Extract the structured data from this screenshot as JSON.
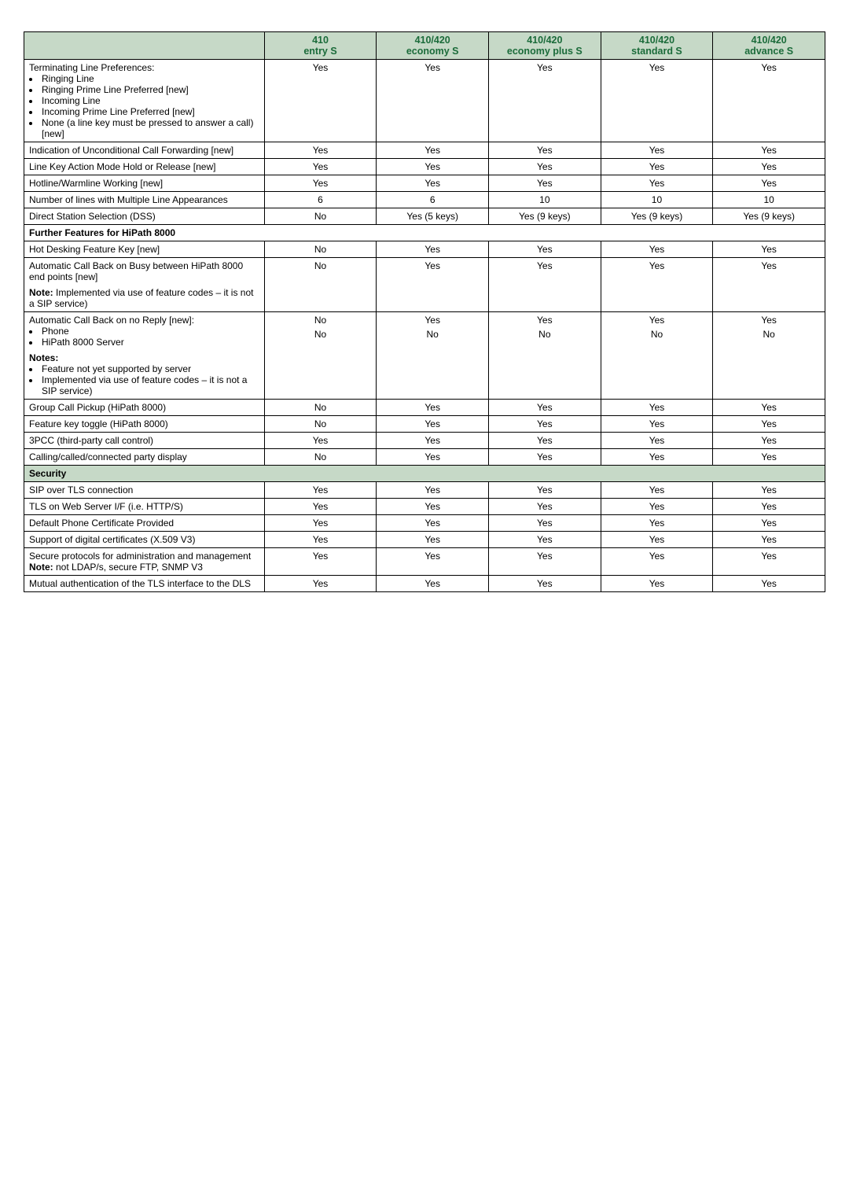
{
  "columns": [
    {
      "line1": "",
      "line2": ""
    },
    {
      "line1": "410",
      "line2": "entry S"
    },
    {
      "line1": "410/420",
      "line2": "economy S"
    },
    {
      "line1": "410/420",
      "line2": "economy plus S"
    },
    {
      "line1": "410/420",
      "line2": "standard S"
    },
    {
      "line1": "410/420",
      "line2": "advance S"
    }
  ],
  "rows": [
    {
      "feature": {
        "lead": "Terminating Line Preferences:",
        "bullets": [
          "Ringing Line",
          "Ringing Prime Line Preferred [new]",
          "Incoming Line",
          "Incoming Prime Line Preferred [new]",
          "None (a line key must be pressed to answer a call) [new]"
        ]
      },
      "values": [
        "Yes",
        "Yes",
        "Yes",
        "Yes",
        "Yes"
      ]
    },
    {
      "feature": {
        "lead": "Indication of Unconditional Call Forwarding [new]"
      },
      "values": [
        "Yes",
        "Yes",
        "Yes",
        "Yes",
        "Yes"
      ]
    },
    {
      "feature": {
        "lead": "Line Key Action Mode Hold or Release [new]"
      },
      "values": [
        "Yes",
        "Yes",
        "Yes",
        "Yes",
        "Yes"
      ]
    },
    {
      "feature": {
        "lead": "Hotline/Warmline Working [new]"
      },
      "values": [
        "Yes",
        "Yes",
        "Yes",
        "Yes",
        "Yes"
      ]
    },
    {
      "feature": {
        "lead": "Number of lines with Multiple Line Appearances"
      },
      "values": [
        "6",
        "6",
        "10",
        "10",
        "10"
      ]
    },
    {
      "feature": {
        "lead": "Direct Station Selection (DSS)"
      },
      "values": [
        "No",
        "Yes (5 keys)",
        "Yes (9 keys)",
        "Yes (9 keys)",
        "Yes (9 keys)"
      ]
    },
    {
      "subsection": "Further Features for HiPath 8000"
    },
    {
      "feature": {
        "lead": "Hot Desking Feature Key [new]"
      },
      "values": [
        "No",
        "Yes",
        "Yes",
        "Yes",
        "Yes"
      ]
    },
    {
      "feature": {
        "lead": "Automatic Call Back on Busy between HiPath 8000 end points [new]",
        "noteLabel": "Note:",
        "noteText": " Implemented via use of feature codes – it is not a SIP service)"
      },
      "values": [
        "No",
        "Yes",
        "Yes",
        "Yes",
        "Yes"
      ]
    },
    {
      "feature": {
        "lead": "Automatic Call Back on no Reply [new]:",
        "bullets": [
          "Phone",
          "HiPath 8000 Server"
        ],
        "notesLabel": "Notes:",
        "notesBullets": [
          "Feature not yet supported by server",
          "Implemented via use of feature codes – it is not a SIP service)"
        ]
      },
      "stackedValues": [
        [
          "No",
          "No"
        ],
        [
          "Yes",
          "No"
        ],
        [
          "Yes",
          "No"
        ],
        [
          "Yes",
          "No"
        ],
        [
          "Yes",
          "No"
        ]
      ]
    },
    {
      "feature": {
        "lead": "Group Call Pickup (HiPath 8000)"
      },
      "values": [
        "No",
        "Yes",
        "Yes",
        "Yes",
        "Yes"
      ]
    },
    {
      "feature": {
        "lead": "Feature key toggle (HiPath 8000)"
      },
      "values": [
        "No",
        "Yes",
        "Yes",
        "Yes",
        "Yes"
      ]
    },
    {
      "feature": {
        "lead": "3PCC (third-party call control)"
      },
      "values": [
        "Yes",
        "Yes",
        "Yes",
        "Yes",
        "Yes"
      ]
    },
    {
      "feature": {
        "lead": "Calling/called/connected party display"
      },
      "values": [
        "No",
        "Yes",
        "Yes",
        "Yes",
        "Yes"
      ]
    },
    {
      "section": "Security"
    },
    {
      "feature": {
        "lead": "SIP over TLS connection"
      },
      "values": [
        "Yes",
        "Yes",
        "Yes",
        "Yes",
        "Yes"
      ]
    },
    {
      "feature": {
        "lead": "TLS on Web Server I/F (i.e. HTTP/S)"
      },
      "values": [
        "Yes",
        "Yes",
        "Yes",
        "Yes",
        "Yes"
      ]
    },
    {
      "feature": {
        "lead": "Default Phone Certificate Provided"
      },
      "values": [
        "Yes",
        "Yes",
        "Yes",
        "Yes",
        "Yes"
      ]
    },
    {
      "feature": {
        "lead": "Support of digital certificates (X.509 V3)"
      },
      "values": [
        "Yes",
        "Yes",
        "Yes",
        "Yes",
        "Yes"
      ]
    },
    {
      "feature": {
        "lead": "Secure protocols for administration and management",
        "inlineNoteLabel": "Note:",
        "inlineNoteText": " not LDAP/s, secure FTP, SNMP V3"
      },
      "values": [
        "Yes",
        "Yes",
        "Yes",
        "Yes",
        "Yes"
      ]
    },
    {
      "feature": {
        "lead": "Mutual authentication of the TLS interface to the DLS"
      },
      "values": [
        "Yes",
        "Yes",
        "Yes",
        "Yes",
        "Yes"
      ]
    }
  ]
}
